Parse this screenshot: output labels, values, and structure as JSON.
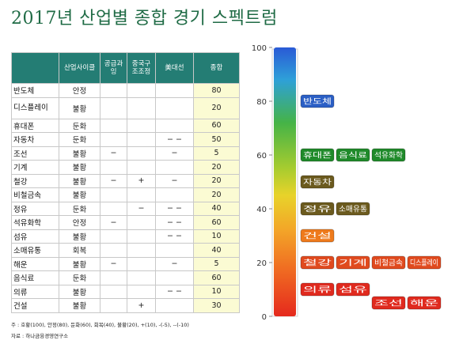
{
  "title": "2017년 산업별 종합 경기 스펙트럼",
  "table": {
    "headers": [
      "",
      "산업사이클",
      "공급과잉",
      "중국구조조정",
      "美대선",
      "종합"
    ],
    "rows": [
      {
        "name": "반도체",
        "cycle": "안정",
        "supply": "",
        "china": "",
        "us": "",
        "score": "80"
      },
      {
        "name": "디스플레이",
        "cycle": "불황",
        "supply": "",
        "china": "",
        "us": "",
        "score": "20"
      },
      {
        "name": "휴대폰",
        "cycle": "둔화",
        "supply": "",
        "china": "",
        "us": "",
        "score": "60"
      },
      {
        "name": "자동차",
        "cycle": "둔화",
        "supply": "",
        "china": "",
        "us": "− −",
        "score": "50"
      },
      {
        "name": "조선",
        "cycle": "불황",
        "supply": "−",
        "china": "",
        "us": "−",
        "score": "5"
      },
      {
        "name": "기계",
        "cycle": "불황",
        "supply": "",
        "china": "",
        "us": "",
        "score": "20"
      },
      {
        "name": "철강",
        "cycle": "불황",
        "supply": "−",
        "china": "+",
        "us": "−",
        "score": "20"
      },
      {
        "name": "비철금속",
        "cycle": "불황",
        "supply": "",
        "china": "",
        "us": "",
        "score": "20"
      },
      {
        "name": "정유",
        "cycle": "둔화",
        "supply": "",
        "china": "−",
        "us": "− −",
        "score": "40"
      },
      {
        "name": "석유화학",
        "cycle": "안정",
        "supply": "−",
        "china": "",
        "us": "− −",
        "score": "60"
      },
      {
        "name": "섬유",
        "cycle": "불황",
        "supply": "",
        "china": "",
        "us": "− −",
        "score": "10"
      },
      {
        "name": "소매유통",
        "cycle": "회복",
        "supply": "",
        "china": "",
        "us": "",
        "score": "40"
      },
      {
        "name": "해운",
        "cycle": "불황",
        "supply": "−",
        "china": "",
        "us": "−",
        "score": "5"
      },
      {
        "name": "음식료",
        "cycle": "둔화",
        "supply": "",
        "china": "",
        "us": "",
        "score": "60"
      },
      {
        "name": "의류",
        "cycle": "불황",
        "supply": "",
        "china": "",
        "us": "− −",
        "score": "10"
      },
      {
        "name": "건설",
        "cycle": "불황",
        "supply": "",
        "china": "+",
        "us": "",
        "score": "30"
      }
    ]
  },
  "note1": "주 : 호황(100), 안정(80), 둔화(60), 회복(40), 불황(20), +(10), -(-5), --(-10)",
  "note2": "자료 : 하나금융경영연구소",
  "chart_data": {
    "type": "bar",
    "title": "2017년 산업별 종합 경기 스펙트럼",
    "ylim": [
      0,
      100
    ],
    "y_ticks": [
      0,
      20,
      40,
      60,
      80,
      100
    ],
    "categories": [
      "반도체",
      "디스플레이",
      "휴대폰",
      "자동차",
      "조선",
      "기계",
      "철강",
      "비철금속",
      "정유",
      "석유화학",
      "섬유",
      "소매유통",
      "해운",
      "음식료",
      "의류",
      "건설"
    ],
    "values": [
      80,
      20,
      60,
      50,
      5,
      20,
      20,
      20,
      40,
      60,
      10,
      40,
      5,
      60,
      10,
      30
    ],
    "labels": [
      {
        "text": "반도체",
        "value": 80,
        "slot": 0,
        "color": "#2b5fc5"
      },
      {
        "text": "휴대폰",
        "value": 60,
        "slot": 0,
        "color": "#1f8a2a"
      },
      {
        "text": "음식료",
        "value": 60,
        "slot": 1,
        "color": "#1f8a2a"
      },
      {
        "text": "석유화학",
        "value": 60,
        "slot": 2,
        "color": "#1f8a2a"
      },
      {
        "text": "자동차",
        "value": 50,
        "slot": 0,
        "color": "#6b5a1e"
      },
      {
        "text": "정유",
        "value": 40,
        "slot": 0,
        "color": "#6b5a1e"
      },
      {
        "text": "소매유통",
        "value": 40,
        "slot": 1,
        "color": "#6b5a1e"
      },
      {
        "text": "건설",
        "value": 30,
        "slot": 0,
        "color": "#ee7a1c"
      },
      {
        "text": "철강",
        "value": 20,
        "slot": 0,
        "color": "#e04a1e"
      },
      {
        "text": "기계",
        "value": 20,
        "slot": 1,
        "color": "#e04a1e"
      },
      {
        "text": "비철금속",
        "value": 20,
        "slot": 2,
        "color": "#e04a1e"
      },
      {
        "text": "디스플레이",
        "value": 20,
        "slot": 3,
        "color": "#e04a1e"
      },
      {
        "text": "의류",
        "value": 10,
        "slot": 0,
        "color": "#e02a1e"
      },
      {
        "text": "섬유",
        "value": 10,
        "slot": 1,
        "color": "#e02a1e"
      },
      {
        "text": "조선",
        "value": 5,
        "slot": 2,
        "color": "#e02a1e"
      },
      {
        "text": "해운",
        "value": 5,
        "slot": 3,
        "color": "#e02a1e"
      }
    ]
  }
}
